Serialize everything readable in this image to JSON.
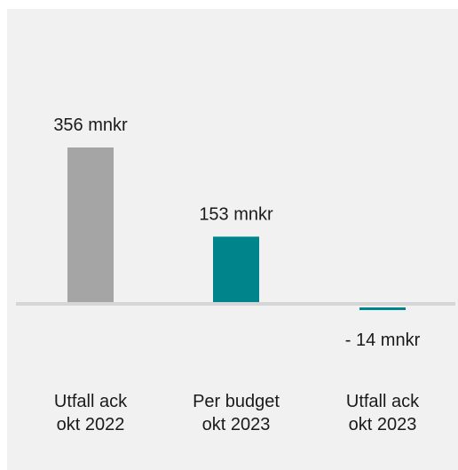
{
  "chart_data": {
    "type": "bar",
    "categories": [
      [
        "Utfall ack",
        "okt 2022"
      ],
      [
        "Per budget",
        "okt 2023"
      ],
      [
        "Utfall ack",
        "okt 2023"
      ]
    ],
    "values": [
      356,
      153,
      -14
    ],
    "data_labels": [
      "356 mnkr",
      "153 mnkr",
      "- 14 mnkr"
    ],
    "colors": [
      "#a5a5a5",
      "#00848c",
      "#00848c"
    ],
    "baseline_color": "#d6d6d6",
    "grid": false,
    "legend": "none"
  }
}
